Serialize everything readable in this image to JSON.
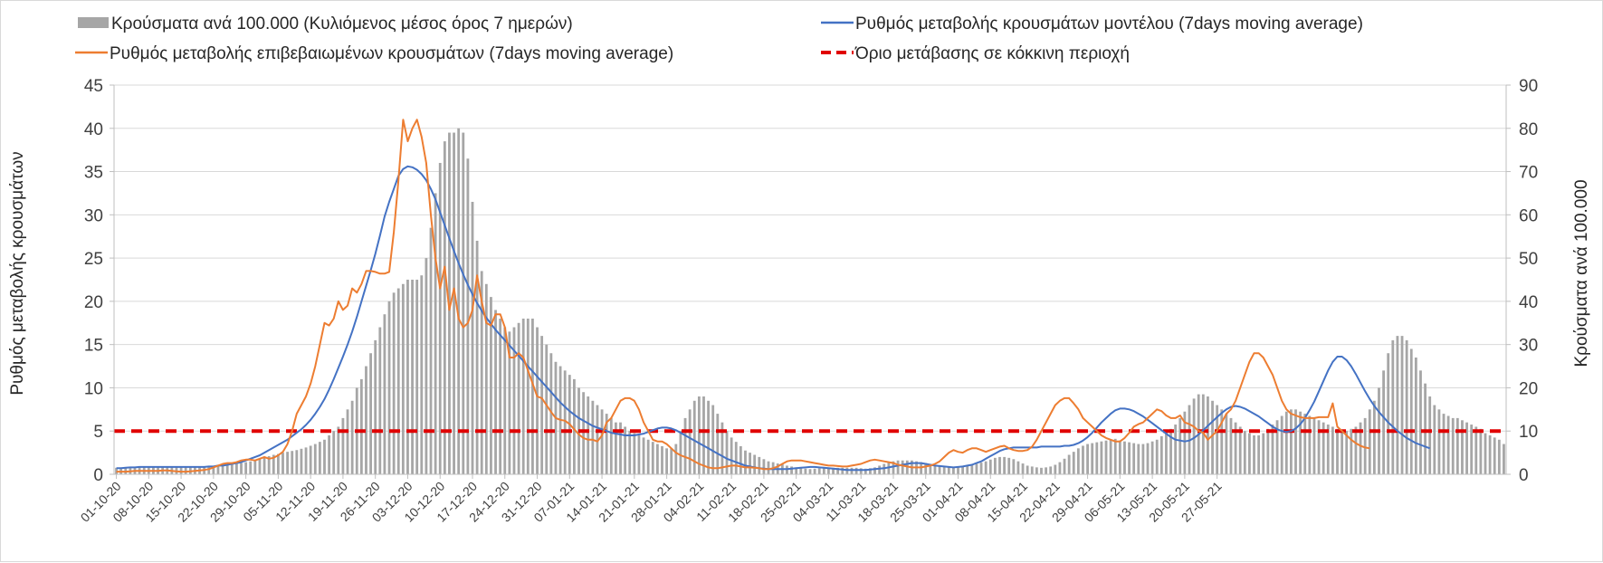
{
  "chart_data": {
    "type": "bar",
    "legend_placement": "top",
    "y_left_label": "Ρυθμός μεταβολής κρουσμάτων",
    "y_right_label": "Κρούσματα ανά 100.000",
    "y_left_lim": [
      0,
      45
    ],
    "y_left_ticks": [
      0,
      5,
      10,
      15,
      20,
      25,
      30,
      35,
      40,
      45
    ],
    "y_right_lim": [
      0,
      90
    ],
    "y_right_ticks": [
      0,
      10,
      20,
      30,
      40,
      50,
      60,
      70,
      80,
      90
    ],
    "grid": true,
    "x_tick_labels": [
      "01-10-20",
      "08-10-20",
      "15-10-20",
      "22-10-20",
      "29-10-20",
      "05-11-20",
      "12-11-20",
      "19-11-20",
      "26-11-20",
      "03-12-20",
      "10-12-20",
      "17-12-20",
      "24-12-20",
      "31-12-20",
      "07-01-21",
      "14-01-21",
      "21-01-21",
      "28-01-21",
      "04-02-21",
      "11-02-21",
      "18-02-21",
      "25-02-21",
      "04-03-21",
      "11-03-21",
      "18-03-21",
      "25-03-21",
      "01-04-21",
      "08-04-21",
      "15-04-21",
      "22-04-21",
      "29-04-21",
      "06-05-21",
      "13-05-21",
      "20-05-21",
      "27-05-21"
    ],
    "threshold": 5,
    "series": [
      {
        "name": "Κρούσματα ανά 100.000 (Κυλιόμενος μέσος όρος 7 ημερών)",
        "kind": "bar",
        "axis": "right",
        "color": "#a6a6a6",
        "values": [
          1.5,
          1.5,
          1.5,
          1.5,
          1.6,
          1.6,
          1.6,
          1.6,
          1.6,
          1.6,
          1.6,
          1.6,
          1.6,
          1.7,
          1.7,
          1.7,
          1.7,
          1.7,
          1.7,
          1.7,
          1.8,
          1.8,
          1.9,
          2,
          2.1,
          2.3,
          2.4,
          2.6,
          2.8,
          3,
          3.3,
          3.6,
          3.9,
          4.2,
          4.5,
          4.7,
          5,
          5.2,
          5.4,
          5.6,
          5.9,
          6.2,
          6.6,
          7,
          7.5,
          8,
          9,
          10,
          11,
          13,
          15,
          17,
          20,
          22,
          25,
          28,
          31,
          34,
          37,
          40,
          42,
          43,
          44,
          45,
          45,
          45,
          46,
          50,
          57,
          65,
          72,
          77,
          79,
          79,
          80,
          79,
          73,
          63,
          54,
          47,
          44,
          41,
          38,
          36,
          34,
          33,
          34,
          35,
          36,
          36,
          36,
          34,
          32,
          30,
          28,
          26,
          25,
          24,
          23,
          22,
          20,
          19,
          18,
          17,
          16,
          15,
          14,
          13,
          12,
          12,
          11,
          10,
          9.5,
          9,
          8.5,
          8,
          7.5,
          7,
          6.5,
          6,
          6,
          7,
          10,
          13,
          15,
          17,
          18,
          18,
          17,
          16,
          14,
          12,
          10,
          8.5,
          7.5,
          6.5,
          5.5,
          5,
          4.5,
          4,
          3.5,
          3,
          2.8,
          2.5,
          2.3,
          2,
          1.8,
          1.6,
          1.4,
          1.3,
          1.2,
          1.3,
          1.4,
          1.5,
          1.5,
          1.5,
          1.5,
          1.5,
          1.5,
          1.5,
          1.5,
          1.4,
          1.3,
          1.4,
          1.6,
          2,
          2.4,
          2.8,
          3,
          3.2,
          3.2,
          3.2,
          3.2,
          3,
          2.8,
          2.6,
          2.4,
          2.2,
          2,
          1.8,
          1.6,
          1.5,
          1.6,
          1.8,
          2,
          2.2,
          2.4,
          2.7,
          3,
          3.4,
          3.8,
          4,
          4,
          3.8,
          3.5,
          3,
          2.5,
          2,
          1.8,
          1.6,
          1.5,
          1.6,
          1.8,
          2.2,
          2.8,
          3.6,
          4.5,
          5.2,
          6,
          6.6,
          7,
          7.2,
          7.4,
          7.6,
          7.8,
          8,
          8.2,
          7.8,
          7.6,
          7.4,
          7.2,
          7,
          7,
          7.2,
          7.6,
          8,
          8.8,
          9.6,
          10.5,
          11.5,
          13,
          14.5,
          16,
          17.5,
          18.5,
          18.5,
          18,
          17,
          16,
          15,
          14,
          13,
          12,
          11,
          10,
          9.5,
          9,
          9,
          9.5,
          10.5,
          11.5,
          12.5,
          13.5,
          14.5,
          15,
          15,
          14.5,
          14,
          13.5,
          13,
          12.5,
          12,
          11.5,
          11,
          10.5,
          10,
          10,
          10.5,
          11,
          12,
          13,
          15,
          17,
          20,
          24,
          28,
          31,
          32,
          32,
          31,
          29,
          27,
          24,
          21,
          18,
          16,
          15,
          14,
          13.5,
          13,
          13,
          12.5,
          12,
          11.5,
          11,
          10.5,
          9.5,
          9,
          8.5,
          8,
          7
        ]
      },
      {
        "name": "Ρυθμός μεταβολής κρουσμάτων μοντέλου (7days moving average)",
        "kind": "line",
        "axis": "left",
        "color": "#4472c4",
        "values": [
          0.7,
          0.7,
          0.75,
          0.8,
          0.8,
          0.85,
          0.85,
          0.85,
          0.85,
          0.85,
          0.85,
          0.85,
          0.85,
          0.85,
          0.85,
          0.85,
          0.85,
          0.85,
          0.85,
          0.85,
          0.9,
          0.9,
          1,
          1,
          1.1,
          1.2,
          1.3,
          1.4,
          1.6,
          1.8,
          2,
          2.2,
          2.5,
          2.8,
          3.1,
          3.4,
          3.7,
          4,
          4.4,
          4.8,
          5.2,
          5.7,
          6.3,
          7,
          7.8,
          8.7,
          9.8,
          11,
          12.3,
          13.6,
          15,
          16.5,
          18.2,
          20,
          21.8,
          23.6,
          25.5,
          27.6,
          29.8,
          31.5,
          33,
          34.5,
          35.3,
          35.6,
          35.5,
          35.2,
          34.7,
          34,
          33,
          31.8,
          30.3,
          28.8,
          27.3,
          25.8,
          24.4,
          23.1,
          21.9,
          20.8,
          19.8,
          18.9,
          18.1,
          17.4,
          16.7,
          16.1,
          15.5,
          14.9,
          14.3,
          13.7,
          13.1,
          12.5,
          11.9,
          11.3,
          10.7,
          10.1,
          9.5,
          8.9,
          8.3,
          7.8,
          7.3,
          6.9,
          6.5,
          6.2,
          5.9,
          5.6,
          5.4,
          5.2,
          5,
          4.8,
          4.7,
          4.6,
          4.5,
          4.5,
          4.5,
          4.6,
          4.7,
          4.9,
          5.1,
          5.3,
          5.4,
          5.4,
          5.3,
          5.1,
          4.8,
          4.5,
          4.2,
          3.9,
          3.6,
          3.3,
          3,
          2.7,
          2.4,
          2.1,
          1.8,
          1.6,
          1.4,
          1.2,
          1,
          0.9,
          0.8,
          0.7,
          0.65,
          0.6,
          0.6,
          0.6,
          0.6,
          0.6,
          0.65,
          0.7,
          0.75,
          0.8,
          0.85,
          0.85,
          0.8,
          0.75,
          0.7,
          0.65,
          0.6,
          0.55,
          0.5,
          0.5,
          0.5,
          0.5,
          0.5,
          0.55,
          0.6,
          0.65,
          0.7,
          0.8,
          0.9,
          1,
          1.1,
          1.2,
          1.3,
          1.3,
          1.3,
          1.2,
          1.1,
          1,
          0.95,
          0.9,
          0.85,
          0.8,
          0.85,
          0.9,
          1,
          1.1,
          1.3,
          1.5,
          1.8,
          2.1,
          2.4,
          2.7,
          2.9,
          3,
          3.1,
          3.1,
          3.1,
          3.1,
          3.1,
          3.1,
          3.2,
          3.2,
          3.2,
          3.2,
          3.2,
          3.3,
          3.3,
          3.4,
          3.6,
          3.9,
          4.3,
          4.8,
          5.4,
          6,
          6.5,
          7,
          7.4,
          7.6,
          7.6,
          7.5,
          7.3,
          7,
          6.7,
          6.3,
          5.9,
          5.5,
          5.1,
          4.7,
          4.3,
          4,
          3.9,
          3.8,
          3.9,
          4.2,
          4.6,
          5.1,
          5.6,
          6.1,
          6.6,
          7.1,
          7.5,
          7.8,
          7.9,
          7.8,
          7.6,
          7.3,
          7,
          6.7,
          6.3,
          5.9,
          5.5,
          5.2,
          5,
          4.9,
          5,
          5.3,
          5.8,
          6.5,
          7.4,
          8.4,
          9.6,
          10.8,
          12,
          13,
          13.6,
          13.6,
          13.2,
          12.5,
          11.6,
          10.6,
          9.6,
          8.7,
          7.9,
          7.2,
          6.6,
          6,
          5.5,
          5,
          4.6,
          4.2,
          3.9,
          3.6,
          3.4,
          3.2,
          3
        ]
      },
      {
        "name": "Ρυθμός μεταβολής επιβεβαιωμένων κρουσμάτων (7days moving average)",
        "kind": "line",
        "axis": "left",
        "color": "#ed7d31",
        "values": [
          0.3,
          0.3,
          0.3,
          0.35,
          0.4,
          0.4,
          0.4,
          0.4,
          0.4,
          0.4,
          0.45,
          0.45,
          0.4,
          0.35,
          0.3,
          0.3,
          0.35,
          0.4,
          0.45,
          0.5,
          0.6,
          0.8,
          1,
          1.2,
          1.3,
          1.3,
          1.4,
          1.6,
          1.7,
          1.7,
          1.6,
          1.8,
          2,
          1.8,
          1.9,
          2.2,
          2.6,
          3.5,
          5,
          7,
          8,
          9,
          10.5,
          12.5,
          15,
          17.5,
          17.2,
          18,
          20,
          19,
          19.5,
          21.5,
          21,
          22,
          23.5,
          23.5,
          23.4,
          23.2,
          23.2,
          23.4,
          28,
          34,
          41,
          38.5,
          40,
          41,
          39,
          36,
          30,
          25,
          21.5,
          24,
          19,
          21.5,
          18,
          17,
          17.5,
          19,
          23,
          20,
          17.5,
          17.2,
          18.5,
          18.5,
          17,
          13.5,
          13.5,
          14,
          13.5,
          12,
          10.5,
          9,
          8.8,
          8,
          7.2,
          6.5,
          6.3,
          6.2,
          5.8,
          5.2,
          4.6,
          4.2,
          4,
          4,
          3.8,
          4.5,
          6,
          6.5,
          7.5,
          8.5,
          8.8,
          8.8,
          8.5,
          7.5,
          6,
          5,
          4,
          3.8,
          3.8,
          3.5,
          3,
          2.5,
          2.2,
          2,
          1.8,
          1.5,
          1.2,
          1,
          0.8,
          0.7,
          0.7,
          0.8,
          0.9,
          1,
          1,
          0.9,
          0.8,
          0.8,
          0.75,
          0.7,
          0.6,
          0.6,
          0.7,
          0.9,
          1.2,
          1.5,
          1.6,
          1.6,
          1.6,
          1.5,
          1.4,
          1.3,
          1.2,
          1.1,
          1,
          1,
          0.95,
          0.9,
          0.9,
          1,
          1.1,
          1.2,
          1.4,
          1.6,
          1.7,
          1.6,
          1.5,
          1.4,
          1.3,
          1.1,
          1,
          0.9,
          0.8,
          0.8,
          0.8,
          0.9,
          1,
          1.2,
          1.5,
          2,
          2.5,
          2.8,
          2.6,
          2.5,
          2.8,
          3,
          3,
          2.8,
          2.6,
          2.8,
          3,
          3.2,
          3.3,
          3,
          2.8,
          2.7,
          2.7,
          2.8,
          3.2,
          4,
          5,
          6,
          7,
          8,
          8.5,
          8.8,
          8.8,
          8.2,
          7.5,
          6.5,
          6,
          5.5,
          5,
          4.5,
          4.2,
          4,
          3.8,
          3.8,
          4.2,
          4.8,
          5.5,
          5.8,
          6,
          6.5,
          7,
          7.5,
          7.3,
          6.8,
          6.5,
          6.5,
          6.8,
          6,
          5.8,
          5.5,
          5,
          4.8,
          4,
          4.5,
          5,
          6,
          7,
          7.5,
          8.5,
          10,
          11.5,
          13,
          14,
          14,
          13.5,
          12.5,
          11.5,
          10,
          8.5,
          7.5,
          7,
          6.8,
          6.6,
          6.5,
          6.5,
          6.5,
          6.6,
          6.6,
          6.6,
          8.2,
          5.5,
          5,
          4.5,
          4,
          3.6,
          3.3,
          3.1,
          3
        ]
      },
      {
        "name": "Όριο μετάβασης σε κόκκινη περιοχή",
        "kind": "threshold",
        "axis": "left",
        "color": "#e00000"
      }
    ]
  }
}
